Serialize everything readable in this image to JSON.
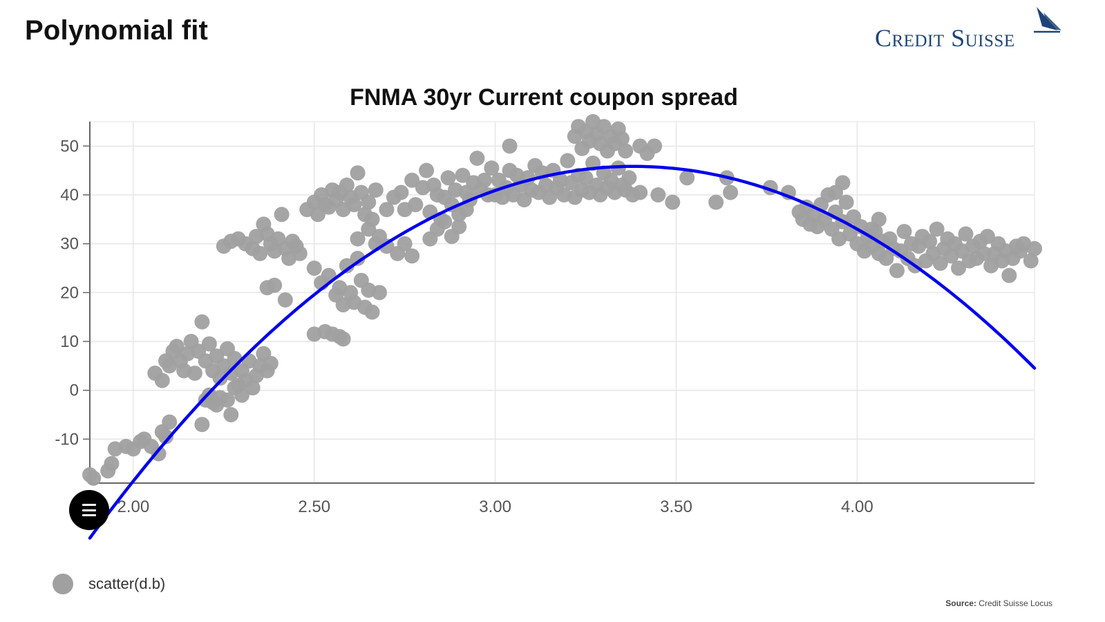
{
  "header": {
    "title": "Polynomial fit",
    "logo_text": "Credit Suisse"
  },
  "chart_data": {
    "type": "scatter",
    "title": "FNMA 30yr Current coupon spread",
    "xlabel": "",
    "ylabel": "",
    "xlim": [
      1.88,
      4.49
    ],
    "ylim": [
      -19,
      55
    ],
    "x_ticks": [
      "2.00",
      "2.50",
      "3.00",
      "3.50",
      "4.00"
    ],
    "x_tick_values": [
      2.0,
      2.5,
      3.0,
      3.5,
      4.0
    ],
    "y_ticks": [
      "-10",
      "0",
      "10",
      "20",
      "30",
      "40",
      "50"
    ],
    "y_tick_values": [
      -10,
      0,
      10,
      20,
      30,
      40,
      50
    ],
    "grid": true,
    "legend_position": "bottom-left",
    "series": [
      {
        "name": "scatter(d.b)",
        "kind": "scatter",
        "color": "#a0a0a0",
        "points": [
          [
            1.88,
            -17.3
          ],
          [
            1.89,
            -18.0
          ],
          [
            1.93,
            -16.5
          ],
          [
            1.94,
            -15.0
          ],
          [
            1.95,
            -12.0
          ],
          [
            1.98,
            -11.5
          ],
          [
            2.0,
            -12.0
          ],
          [
            2.02,
            -10.5
          ],
          [
            2.03,
            -10.0
          ],
          [
            2.05,
            -11.5
          ],
          [
            2.07,
            -13.0
          ],
          [
            2.08,
            -8.5
          ],
          [
            2.09,
            -9.5
          ],
          [
            2.1,
            -6.5
          ],
          [
            2.06,
            3.5
          ],
          [
            2.08,
            2.0
          ],
          [
            2.09,
            6.0
          ],
          [
            2.1,
            5.0
          ],
          [
            2.11,
            8.0
          ],
          [
            2.12,
            9.0
          ],
          [
            2.13,
            6.0
          ],
          [
            2.14,
            4.0
          ],
          [
            2.15,
            7.5
          ],
          [
            2.16,
            10.0
          ],
          [
            2.17,
            3.5
          ],
          [
            2.18,
            8.0
          ],
          [
            2.19,
            14.0
          ],
          [
            2.2,
            6.0
          ],
          [
            2.21,
            9.5
          ],
          [
            2.22,
            4.0
          ],
          [
            2.23,
            7.0
          ],
          [
            2.24,
            2.5
          ],
          [
            2.25,
            5.0
          ],
          [
            2.26,
            8.5
          ],
          [
            2.27,
            3.5
          ],
          [
            2.28,
            6.5
          ],
          [
            2.29,
            1.0
          ],
          [
            2.3,
            4.0
          ],
          [
            2.31,
            2.0
          ],
          [
            2.32,
            6.0
          ],
          [
            2.33,
            0.5
          ],
          [
            2.34,
            3.0
          ],
          [
            2.35,
            5.0
          ],
          [
            2.36,
            7.5
          ],
          [
            2.37,
            4.0
          ],
          [
            2.38,
            5.5
          ],
          [
            2.21,
            -1.0
          ],
          [
            2.22,
            -2.5
          ],
          [
            2.23,
            -3.0
          ],
          [
            2.24,
            -1.5
          ],
          [
            2.26,
            -2.0
          ],
          [
            2.27,
            -5.0
          ],
          [
            2.19,
            -7.0
          ],
          [
            2.2,
            -2.0
          ],
          [
            2.21,
            -1.0
          ],
          [
            2.28,
            0.5
          ],
          [
            2.3,
            -1.0
          ],
          [
            2.25,
            29.5
          ],
          [
            2.27,
            30.5
          ],
          [
            2.29,
            31.0
          ],
          [
            2.31,
            30.0
          ],
          [
            2.33,
            29.0
          ],
          [
            2.34,
            31.5
          ],
          [
            2.35,
            28.0
          ],
          [
            2.36,
            34.0
          ],
          [
            2.37,
            32.0
          ],
          [
            2.38,
            30.0
          ],
          [
            2.39,
            28.5
          ],
          [
            2.4,
            31.0
          ],
          [
            2.41,
            36.0
          ],
          [
            2.42,
            29.0
          ],
          [
            2.43,
            27.0
          ],
          [
            2.44,
            30.5
          ],
          [
            2.45,
            29.5
          ],
          [
            2.46,
            28.0
          ],
          [
            2.37,
            21.0
          ],
          [
            2.39,
            21.5
          ],
          [
            2.42,
            18.5
          ],
          [
            2.48,
            37.0
          ],
          [
            2.5,
            38.5
          ],
          [
            2.51,
            36.0
          ],
          [
            2.52,
            40.0
          ],
          [
            2.53,
            38.0
          ],
          [
            2.54,
            37.5
          ],
          [
            2.55,
            41.0
          ],
          [
            2.56,
            39.0
          ],
          [
            2.57,
            40.5
          ],
          [
            2.58,
            37.0
          ],
          [
            2.59,
            42.0
          ],
          [
            2.6,
            39.5
          ],
          [
            2.61,
            38.0
          ],
          [
            2.62,
            44.5
          ],
          [
            2.63,
            40.5
          ],
          [
            2.64,
            36.0
          ],
          [
            2.65,
            38.5
          ],
          [
            2.66,
            35.0
          ],
          [
            2.67,
            41.0
          ],
          [
            2.5,
            25.0
          ],
          [
            2.52,
            22.0
          ],
          [
            2.54,
            23.5
          ],
          [
            2.56,
            19.5
          ],
          [
            2.57,
            21.0
          ],
          [
            2.58,
            17.5
          ],
          [
            2.59,
            25.5
          ],
          [
            2.6,
            20.0
          ],
          [
            2.61,
            18.0
          ],
          [
            2.62,
            27.0
          ],
          [
            2.63,
            22.5
          ],
          [
            2.64,
            17.0
          ],
          [
            2.65,
            20.5
          ],
          [
            2.66,
            16.0
          ],
          [
            2.67,
            30.0
          ],
          [
            2.68,
            20.0
          ],
          [
            2.5,
            11.5
          ],
          [
            2.53,
            12.0
          ],
          [
            2.55,
            11.5
          ],
          [
            2.57,
            11.0
          ],
          [
            2.58,
            10.5
          ],
          [
            2.62,
            31.0
          ],
          [
            2.65,
            33.0
          ],
          [
            2.68,
            31.5
          ],
          [
            2.7,
            29.5
          ],
          [
            2.73,
            28.0
          ],
          [
            2.75,
            30.0
          ],
          [
            2.77,
            27.5
          ],
          [
            2.7,
            37.0
          ],
          [
            2.72,
            39.5
          ],
          [
            2.74,
            40.5
          ],
          [
            2.75,
            37.0
          ],
          [
            2.77,
            43.0
          ],
          [
            2.78,
            38.0
          ],
          [
            2.8,
            41.5
          ],
          [
            2.81,
            45.0
          ],
          [
            2.82,
            36.5
          ],
          [
            2.83,
            42.0
          ],
          [
            2.84,
            40.0
          ],
          [
            2.85,
            35.0
          ],
          [
            2.86,
            39.5
          ],
          [
            2.87,
            43.5
          ],
          [
            2.88,
            38.0
          ],
          [
            2.89,
            41.0
          ],
          [
            2.9,
            36.0
          ],
          [
            2.91,
            44.0
          ],
          [
            2.92,
            40.5
          ],
          [
            2.93,
            39.0
          ],
          [
            2.94,
            42.5
          ],
          [
            2.95,
            47.5
          ],
          [
            2.96,
            41.0
          ],
          [
            2.97,
            43.0
          ],
          [
            2.98,
            40.0
          ],
          [
            2.99,
            45.5
          ],
          [
            2.82,
            31.0
          ],
          [
            2.84,
            33.0
          ],
          [
            2.86,
            34.5
          ],
          [
            2.88,
            31.5
          ],
          [
            2.9,
            33.5
          ],
          [
            2.92,
            37.0
          ],
          [
            3.0,
            40.0
          ],
          [
            3.01,
            43.0
          ],
          [
            3.02,
            39.5
          ],
          [
            3.03,
            41.5
          ],
          [
            3.04,
            45.0
          ],
          [
            3.05,
            40.0
          ],
          [
            3.06,
            44.0
          ],
          [
            3.07,
            42.0
          ],
          [
            3.08,
            39.0
          ],
          [
            3.09,
            43.5
          ],
          [
            3.1,
            41.0
          ],
          [
            3.11,
            46.0
          ],
          [
            3.12,
            40.5
          ],
          [
            3.13,
            44.5
          ],
          [
            3.14,
            42.0
          ],
          [
            3.15,
            39.5
          ],
          [
            3.16,
            45.0
          ],
          [
            3.17,
            41.5
          ],
          [
            3.18,
            43.0
          ],
          [
            3.19,
            40.0
          ],
          [
            3.2,
            47.0
          ],
          [
            3.21,
            42.5
          ],
          [
            3.22,
            39.5
          ],
          [
            3.23,
            44.0
          ],
          [
            3.24,
            41.0
          ],
          [
            3.25,
            43.5
          ],
          [
            3.26,
            40.5
          ],
          [
            3.27,
            46.5
          ],
          [
            3.28,
            42.0
          ],
          [
            3.29,
            40.0
          ],
          [
            3.3,
            44.5
          ],
          [
            3.31,
            41.5
          ],
          [
            3.32,
            43.0
          ],
          [
            3.33,
            40.5
          ],
          [
            3.34,
            45.5
          ],
          [
            3.35,
            42.0
          ],
          [
            3.36,
            41.0
          ],
          [
            3.37,
            43.5
          ],
          [
            3.38,
            40.0
          ],
          [
            3.04,
            50.0
          ],
          [
            3.22,
            52.0
          ],
          [
            3.23,
            54.0
          ],
          [
            3.24,
            49.5
          ],
          [
            3.25,
            53.0
          ],
          [
            3.26,
            51.0
          ],
          [
            3.27,
            55.0
          ],
          [
            3.28,
            52.5
          ],
          [
            3.29,
            50.5
          ],
          [
            3.3,
            54.0
          ],
          [
            3.31,
            49.0
          ],
          [
            3.32,
            52.0
          ],
          [
            3.33,
            50.5
          ],
          [
            3.34,
            53.5
          ],
          [
            3.35,
            51.5
          ],
          [
            3.36,
            49.0
          ],
          [
            3.4,
            50.0
          ],
          [
            3.42,
            48.5
          ],
          [
            3.44,
            50.0
          ],
          [
            3.4,
            40.5
          ],
          [
            3.45,
            40.0
          ],
          [
            3.49,
            38.5
          ],
          [
            3.53,
            43.5
          ],
          [
            3.61,
            38.5
          ],
          [
            3.64,
            43.5
          ],
          [
            3.65,
            40.5
          ],
          [
            3.76,
            41.5
          ],
          [
            3.81,
            40.5
          ],
          [
            3.84,
            36.5
          ],
          [
            3.85,
            35.0
          ],
          [
            3.86,
            37.5
          ],
          [
            3.87,
            34.0
          ],
          [
            3.88,
            36.0
          ],
          [
            3.89,
            33.5
          ],
          [
            3.9,
            38.0
          ],
          [
            3.91,
            35.0
          ],
          [
            3.92,
            40.0
          ],
          [
            3.93,
            33.0
          ],
          [
            3.94,
            36.5
          ],
          [
            3.95,
            31.0
          ],
          [
            3.96,
            34.5
          ],
          [
            3.97,
            38.5
          ],
          [
            3.98,
            32.0
          ],
          [
            3.99,
            35.5
          ],
          [
            4.0,
            30.0
          ],
          [
            4.01,
            33.5
          ],
          [
            4.02,
            28.5
          ],
          [
            4.03,
            31.5
          ],
          [
            4.04,
            29.5
          ],
          [
            4.05,
            32.5
          ],
          [
            4.06,
            28.0
          ],
          [
            4.07,
            30.5
          ],
          [
            4.08,
            27.0
          ],
          [
            4.09,
            31.0
          ],
          [
            4.1,
            29.0
          ],
          [
            4.11,
            24.5
          ],
          [
            4.12,
            28.5
          ],
          [
            4.13,
            32.5
          ],
          [
            4.14,
            27.0
          ],
          [
            4.15,
            30.0
          ],
          [
            4.16,
            25.5
          ],
          [
            4.17,
            29.5
          ],
          [
            4.18,
            31.5
          ],
          [
            4.19,
            26.5
          ],
          [
            4.2,
            30.5
          ],
          [
            4.21,
            28.0
          ],
          [
            4.22,
            33.0
          ],
          [
            4.23,
            26.0
          ],
          [
            4.24,
            29.0
          ],
          [
            4.25,
            31.0
          ],
          [
            4.26,
            27.5
          ],
          [
            4.27,
            30.0
          ],
          [
            4.28,
            25.0
          ],
          [
            4.29,
            28.5
          ],
          [
            4.3,
            32.0
          ],
          [
            4.31,
            26.5
          ],
          [
            4.32,
            29.5
          ],
          [
            4.33,
            27.0
          ],
          [
            4.34,
            30.5
          ],
          [
            4.35,
            28.0
          ],
          [
            4.36,
            31.5
          ],
          [
            4.37,
            25.5
          ],
          [
            4.38,
            28.0
          ],
          [
            4.39,
            30.0
          ],
          [
            4.4,
            26.5
          ],
          [
            4.41,
            28.5
          ],
          [
            4.42,
            23.5
          ],
          [
            4.43,
            27.0
          ],
          [
            4.44,
            29.5
          ],
          [
            4.45,
            28.5
          ],
          [
            4.46,
            30.0
          ],
          [
            4.48,
            26.5
          ],
          [
            4.49,
            29.0
          ],
          [
            3.96,
            42.5
          ],
          [
            3.94,
            40.5
          ],
          [
            4.04,
            33.0
          ],
          [
            4.06,
            35.0
          ]
        ]
      },
      {
        "kind": "line",
        "color": "#0000ee",
        "description": "quadratic polynomial fit",
        "coefficients": {
          "a": -33.7,
          "b": 228.0,
          "c": -339.8
        }
      }
    ]
  },
  "legend": {
    "items": [
      {
        "label": "scatter(d.b)",
        "color": "#a0a0a0"
      }
    ]
  },
  "footer": {
    "source_label": "Source:",
    "source_text": "Credit Suisse Locus"
  }
}
